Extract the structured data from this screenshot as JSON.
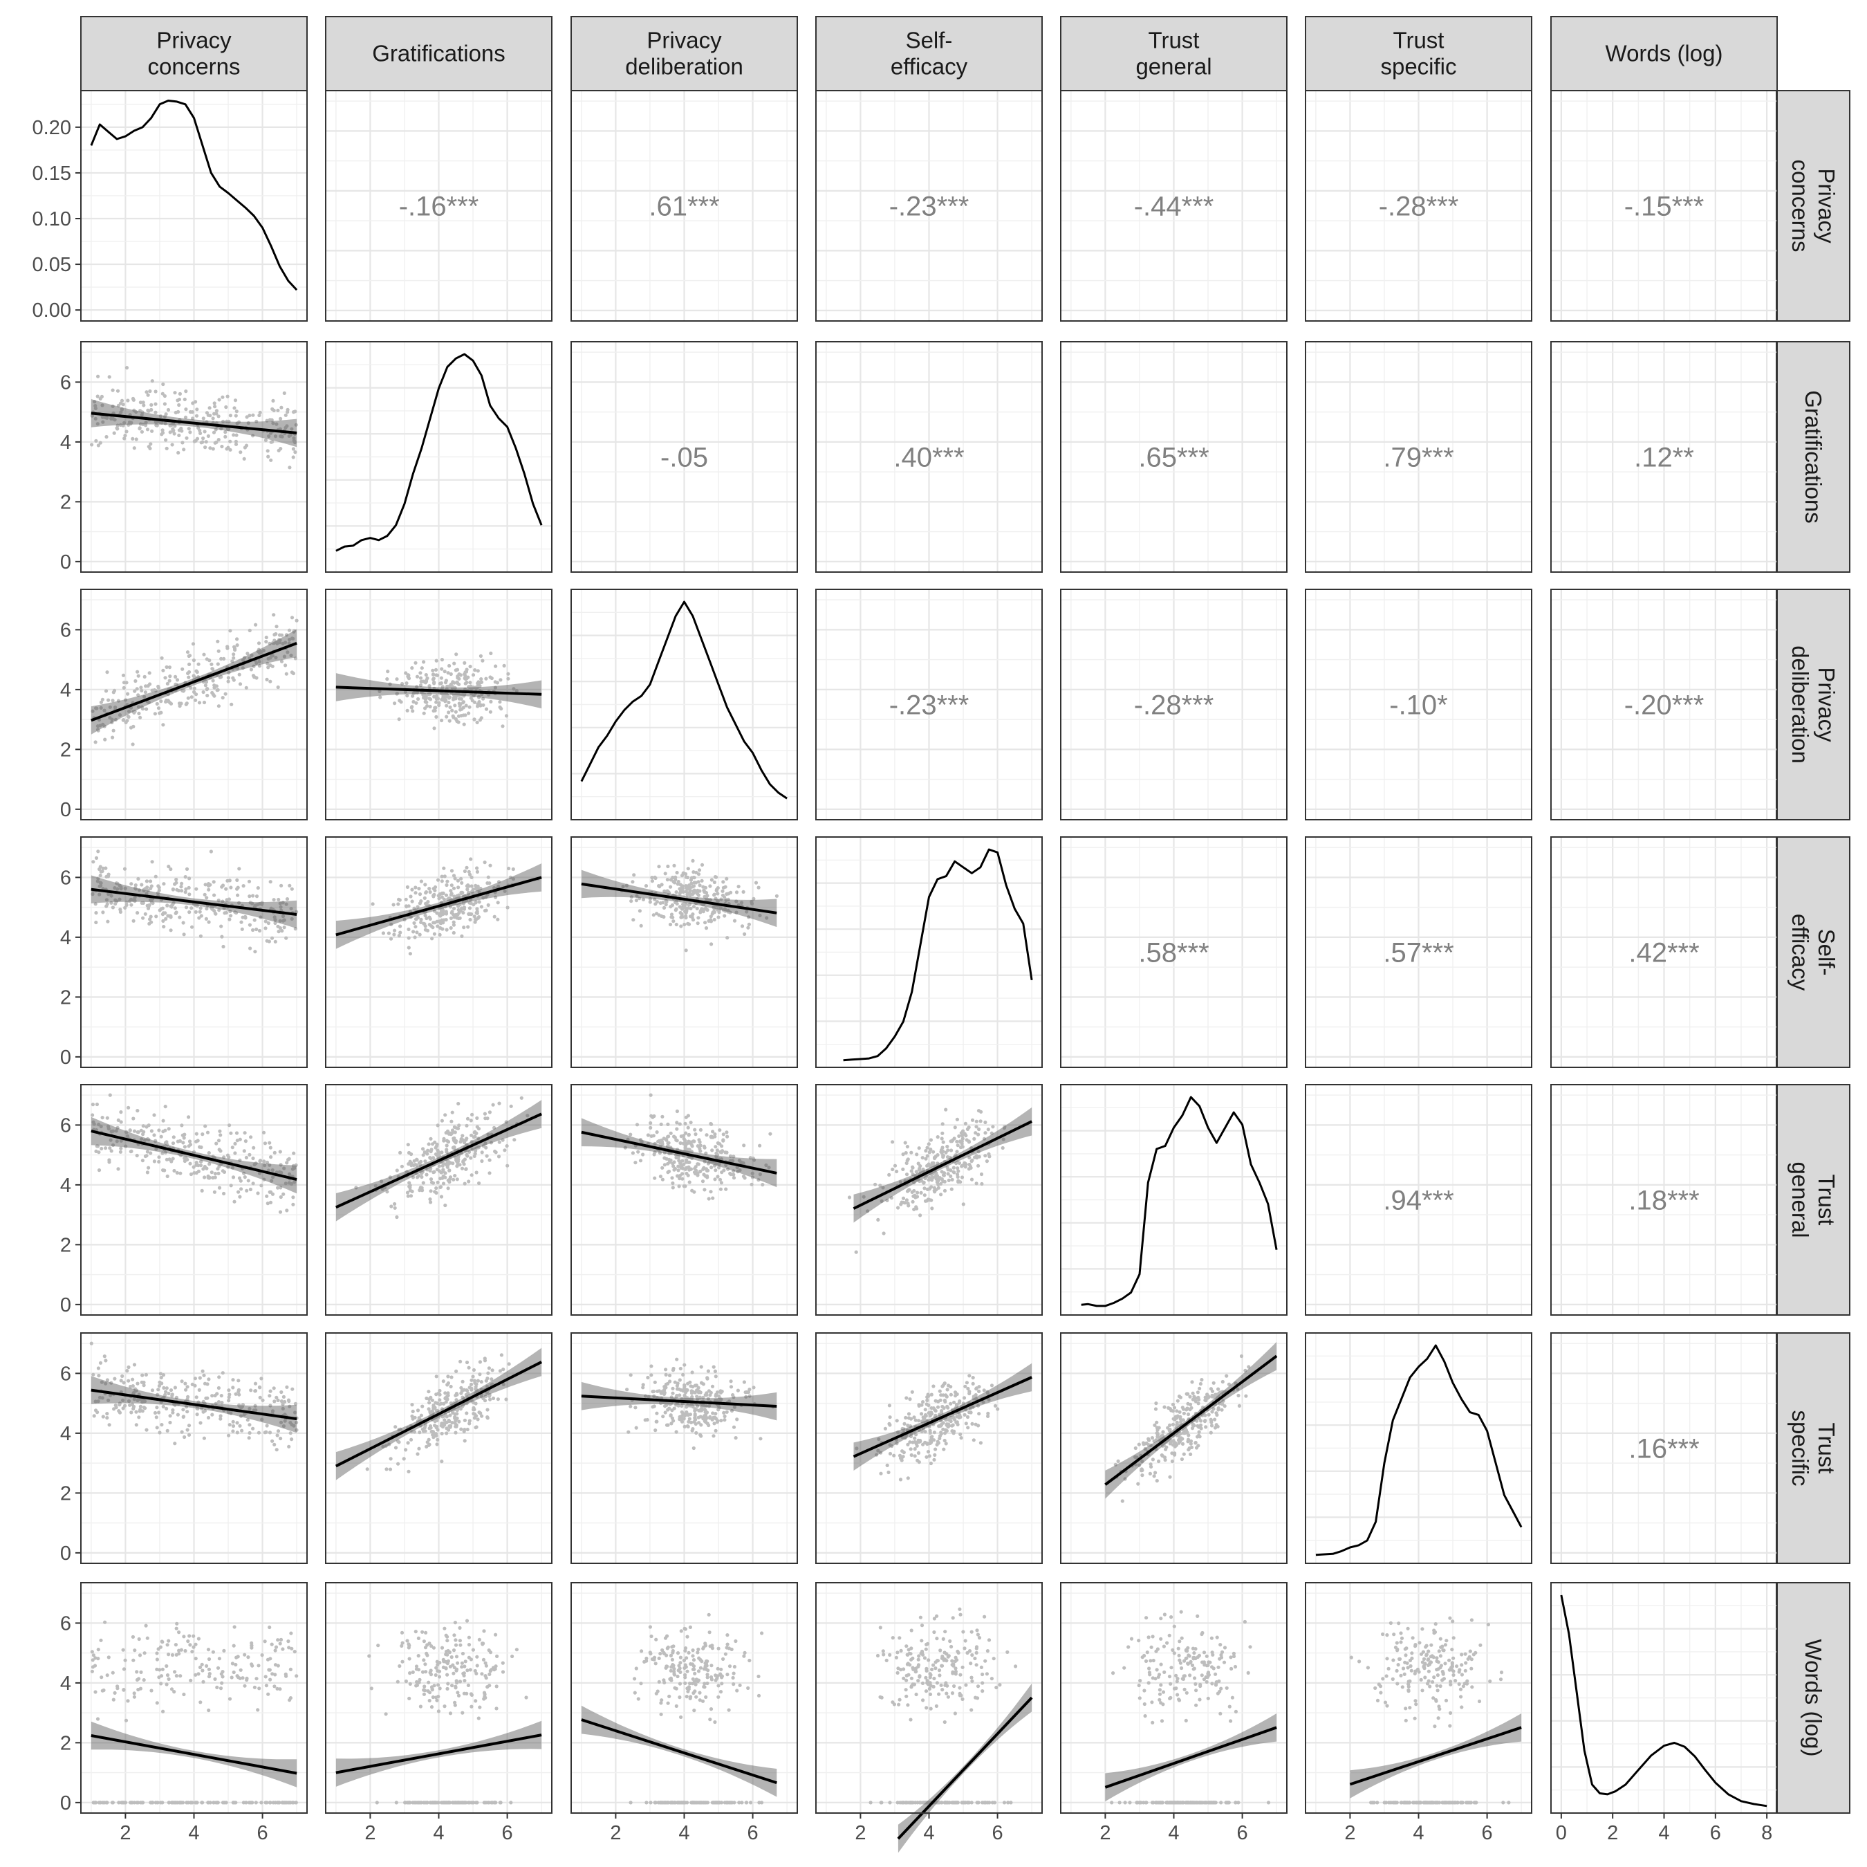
{
  "chart_data": {
    "type": "scatter-matrix",
    "variables": [
      "Privacy concerns",
      "Gratifications",
      "Privacy deliberation",
      "Self-efficacy",
      "Trust general",
      "Trust specific",
      "Words (log)"
    ],
    "column_strips": [
      [
        "Privacy",
        "concerns"
      ],
      [
        "Gratifications"
      ],
      [
        "Privacy",
        "deliberation"
      ],
      [
        "Self-",
        "efficacy"
      ],
      [
        "Trust",
        "general"
      ],
      [
        "Trust",
        "specific"
      ],
      [
        "Words (log)"
      ]
    ],
    "row_strips": [
      [
        "Privacy",
        "concerns"
      ],
      [
        "Gratifications"
      ],
      [
        "Privacy",
        "deliberation"
      ],
      [
        "Self-",
        "efficacy"
      ],
      [
        "Trust",
        "general"
      ],
      [
        "Trust",
        "specific"
      ],
      [
        "Words (log)"
      ]
    ],
    "x_ranges": [
      [
        0.7,
        7.3
      ],
      [
        0.7,
        7.3
      ],
      [
        0.7,
        7.3
      ],
      [
        0.7,
        7.3
      ],
      [
        0.7,
        7.3
      ],
      [
        0.7,
        7.3
      ],
      [
        -0.4,
        8.4
      ]
    ],
    "y_range": [
      -0.35,
      7.35
    ],
    "density_y_range": [
      -0.012,
      0.24
    ],
    "x_ticks": [
      [
        2,
        4,
        6
      ],
      [
        2,
        4,
        6
      ],
      [
        2,
        4,
        6
      ],
      [
        2,
        4,
        6
      ],
      [
        2,
        4,
        6
      ],
      [
        2,
        4,
        6
      ],
      [
        0,
        2,
        4,
        6,
        8
      ]
    ],
    "y_ticks": [
      0,
      2,
      4,
      6
    ],
    "density_y_ticks": [
      "0.00",
      "0.05",
      "0.10",
      "0.15",
      "0.20"
    ],
    "correlations": [
      {
        "row": 0,
        "col": 1,
        "label": "-.16***"
      },
      {
        "row": 0,
        "col": 2,
        "label": ".61***"
      },
      {
        "row": 0,
        "col": 3,
        "label": "-.23***"
      },
      {
        "row": 0,
        "col": 4,
        "label": "-.44***"
      },
      {
        "row": 0,
        "col": 5,
        "label": "-.28***"
      },
      {
        "row": 0,
        "col": 6,
        "label": "-.15***"
      },
      {
        "row": 1,
        "col": 2,
        "label": "-.05"
      },
      {
        "row": 1,
        "col": 3,
        "label": ".40***"
      },
      {
        "row": 1,
        "col": 4,
        "label": ".65***"
      },
      {
        "row": 1,
        "col": 5,
        "label": ".79***"
      },
      {
        "row": 1,
        "col": 6,
        "label": ".12**"
      },
      {
        "row": 2,
        "col": 3,
        "label": "-.23***"
      },
      {
        "row": 2,
        "col": 4,
        "label": "-.28***"
      },
      {
        "row": 2,
        "col": 5,
        "label": "-.10*"
      },
      {
        "row": 2,
        "col": 6,
        "label": "-.20***"
      },
      {
        "row": 3,
        "col": 4,
        "label": ".58***"
      },
      {
        "row": 3,
        "col": 5,
        "label": ".57***"
      },
      {
        "row": 3,
        "col": 6,
        "label": ".42***"
      },
      {
        "row": 4,
        "col": 5,
        "label": ".94***"
      },
      {
        "row": 4,
        "col": 6,
        "label": ".18***"
      },
      {
        "row": 5,
        "col": 6,
        "label": ".16***"
      }
    ],
    "densities": [
      [
        [
          1,
          0.18
        ],
        [
          1.25,
          0.203
        ],
        [
          1.5,
          0.195
        ],
        [
          1.75,
          0.187
        ],
        [
          2,
          0.19
        ],
        [
          2.25,
          0.196
        ],
        [
          2.5,
          0.2
        ],
        [
          2.75,
          0.21
        ],
        [
          3,
          0.225
        ],
        [
          3.25,
          0.229
        ],
        [
          3.5,
          0.228
        ],
        [
          3.75,
          0.225
        ],
        [
          4,
          0.21
        ],
        [
          4.25,
          0.18
        ],
        [
          4.5,
          0.15
        ],
        [
          4.75,
          0.135
        ],
        [
          5,
          0.128
        ],
        [
          5.25,
          0.12
        ],
        [
          5.5,
          0.112
        ],
        [
          5.75,
          0.103
        ],
        [
          6,
          0.09
        ],
        [
          6.25,
          0.07
        ],
        [
          6.5,
          0.048
        ],
        [
          6.75,
          0.032
        ],
        [
          7,
          0.022
        ]
      ],
      [
        [
          1,
          0.04
        ],
        [
          1.25,
          0.05
        ],
        [
          1.5,
          0.052
        ],
        [
          1.75,
          0.065
        ],
        [
          2,
          0.07
        ],
        [
          2.25,
          0.065
        ],
        [
          2.5,
          0.075
        ],
        [
          2.75,
          0.1
        ],
        [
          3,
          0.15
        ],
        [
          3.25,
          0.22
        ],
        [
          3.5,
          0.28
        ],
        [
          3.75,
          0.35
        ],
        [
          4,
          0.42
        ],
        [
          4.25,
          0.47
        ],
        [
          4.5,
          0.49
        ],
        [
          4.75,
          0.5
        ],
        [
          5,
          0.485
        ],
        [
          5.25,
          0.45
        ],
        [
          5.5,
          0.38
        ],
        [
          5.75,
          0.35
        ],
        [
          6,
          0.33
        ],
        [
          6.25,
          0.28
        ],
        [
          6.5,
          0.22
        ],
        [
          6.75,
          0.15
        ],
        [
          7,
          0.1
        ]
      ],
      [
        [
          1,
          0.06
        ],
        [
          1.25,
          0.09
        ],
        [
          1.5,
          0.12
        ],
        [
          1.75,
          0.14
        ],
        [
          2,
          0.165
        ],
        [
          2.25,
          0.185
        ],
        [
          2.5,
          0.2
        ],
        [
          2.75,
          0.21
        ],
        [
          3,
          0.23
        ],
        [
          3.25,
          0.27
        ],
        [
          3.5,
          0.31
        ],
        [
          3.75,
          0.35
        ],
        [
          4,
          0.375
        ],
        [
          4.25,
          0.35
        ],
        [
          4.5,
          0.31
        ],
        [
          4.75,
          0.27
        ],
        [
          5,
          0.23
        ],
        [
          5.25,
          0.19
        ],
        [
          5.5,
          0.16
        ],
        [
          5.75,
          0.13
        ],
        [
          6,
          0.11
        ],
        [
          6.25,
          0.08
        ],
        [
          6.5,
          0.055
        ],
        [
          6.75,
          0.04
        ],
        [
          7,
          0.03
        ]
      ],
      [
        [
          1.5,
          0.005
        ],
        [
          1.75,
          0.006
        ],
        [
          2,
          0.007
        ],
        [
          2.25,
          0.008
        ],
        [
          2.5,
          0.012
        ],
        [
          2.75,
          0.025
        ],
        [
          3,
          0.045
        ],
        [
          3.25,
          0.07
        ],
        [
          3.5,
          0.12
        ],
        [
          3.75,
          0.2
        ],
        [
          4,
          0.28
        ],
        [
          4.25,
          0.31
        ],
        [
          4.5,
          0.315
        ],
        [
          4.75,
          0.34
        ],
        [
          5,
          0.33
        ],
        [
          5.25,
          0.32
        ],
        [
          5.5,
          0.33
        ],
        [
          5.75,
          0.36
        ],
        [
          6,
          0.355
        ],
        [
          6.25,
          0.3
        ],
        [
          6.5,
          0.26
        ],
        [
          6.75,
          0.235
        ],
        [
          7,
          0.14
        ]
      ],
      [
        [
          1.3,
          0.01
        ],
        [
          1.5,
          0.011
        ],
        [
          1.75,
          0.008
        ],
        [
          2,
          0.008
        ],
        [
          2.25,
          0.013
        ],
        [
          2.5,
          0.02
        ],
        [
          2.75,
          0.03
        ],
        [
          3,
          0.06
        ],
        [
          3.25,
          0.21
        ],
        [
          3.5,
          0.265
        ],
        [
          3.75,
          0.27
        ],
        [
          4,
          0.3
        ],
        [
          4.25,
          0.32
        ],
        [
          4.5,
          0.35
        ],
        [
          4.75,
          0.335
        ],
        [
          5,
          0.3
        ],
        [
          5.25,
          0.275
        ],
        [
          5.5,
          0.3
        ],
        [
          5.75,
          0.325
        ],
        [
          6,
          0.305
        ],
        [
          6.25,
          0.24
        ],
        [
          6.5,
          0.21
        ],
        [
          6.75,
          0.175
        ],
        [
          7,
          0.1
        ]
      ],
      [
        [
          1,
          0.008
        ],
        [
          1.25,
          0.009
        ],
        [
          1.5,
          0.01
        ],
        [
          1.75,
          0.015
        ],
        [
          2,
          0.022
        ],
        [
          2.25,
          0.026
        ],
        [
          2.5,
          0.035
        ],
        [
          2.75,
          0.07
        ],
        [
          3,
          0.18
        ],
        [
          3.25,
          0.26
        ],
        [
          3.5,
          0.3
        ],
        [
          3.75,
          0.34
        ],
        [
          4,
          0.36
        ],
        [
          4.25,
          0.375
        ],
        [
          4.5,
          0.4
        ],
        [
          4.75,
          0.37
        ],
        [
          5,
          0.33
        ],
        [
          5.25,
          0.3
        ],
        [
          5.5,
          0.275
        ],
        [
          5.75,
          0.27
        ],
        [
          6,
          0.24
        ],
        [
          6.25,
          0.18
        ],
        [
          6.5,
          0.12
        ],
        [
          6.75,
          0.09
        ],
        [
          7,
          0.06
        ]
      ],
      [
        [
          0,
          0.22
        ],
        [
          0.3,
          0.18
        ],
        [
          0.6,
          0.12
        ],
        [
          0.9,
          0.06
        ],
        [
          1.2,
          0.025
        ],
        [
          1.5,
          0.016
        ],
        [
          1.8,
          0.015
        ],
        [
          2.1,
          0.018
        ],
        [
          2.5,
          0.025
        ],
        [
          3,
          0.04
        ],
        [
          3.5,
          0.055
        ],
        [
          4,
          0.065
        ],
        [
          4.4,
          0.068
        ],
        [
          4.8,
          0.064
        ],
        [
          5.2,
          0.054
        ],
        [
          5.6,
          0.04
        ],
        [
          6,
          0.027
        ],
        [
          6.5,
          0.015
        ],
        [
          7,
          0.008
        ],
        [
          7.5,
          0.005
        ],
        [
          8,
          0.003
        ]
      ]
    ],
    "fits": [
      {
        "row": 1,
        "col": 0,
        "slope": -0.11,
        "intercept": 5.07,
        "x_from": 1.0,
        "x_to": 7.0
      },
      {
        "row": 2,
        "col": 0,
        "slope": 0.43,
        "intercept": 2.54,
        "x_from": 1.0,
        "x_to": 7.0
      },
      {
        "row": 2,
        "col": 1,
        "slope": -0.04,
        "intercept": 4.12,
        "x_from": 1.0,
        "x_to": 7.0
      },
      {
        "row": 3,
        "col": 0,
        "slope": -0.14,
        "intercept": 5.74,
        "x_from": 1.0,
        "x_to": 7.0
      },
      {
        "row": 3,
        "col": 1,
        "slope": 0.32,
        "intercept": 3.76,
        "x_from": 1.0,
        "x_to": 7.0
      },
      {
        "row": 3,
        "col": 2,
        "slope": -0.17,
        "intercept": 5.95,
        "x_from": 1.0,
        "x_to": 6.7
      },
      {
        "row": 4,
        "col": 0,
        "slope": -0.27,
        "intercept": 6.07,
        "x_from": 1.0,
        "x_to": 7.0
      },
      {
        "row": 4,
        "col": 1,
        "slope": 0.52,
        "intercept": 2.73,
        "x_from": 1.0,
        "x_to": 7.0
      },
      {
        "row": 4,
        "col": 2,
        "slope": -0.24,
        "intercept": 6.0,
        "x_from": 1.0,
        "x_to": 6.7
      },
      {
        "row": 4,
        "col": 3,
        "slope": 0.56,
        "intercept": 2.2,
        "x_from": 1.8,
        "x_to": 7.0
      },
      {
        "row": 5,
        "col": 0,
        "slope": -0.16,
        "intercept": 5.6,
        "x_from": 1.0,
        "x_to": 7.0
      },
      {
        "row": 5,
        "col": 1,
        "slope": 0.58,
        "intercept": 2.32,
        "x_from": 1.0,
        "x_to": 7.0
      },
      {
        "row": 5,
        "col": 2,
        "slope": -0.06,
        "intercept": 5.3,
        "x_from": 1.0,
        "x_to": 6.7
      },
      {
        "row": 5,
        "col": 3,
        "slope": 0.51,
        "intercept": 2.3,
        "x_from": 1.8,
        "x_to": 7.0
      },
      {
        "row": 5,
        "col": 4,
        "slope": 0.86,
        "intercept": 0.56,
        "x_from": 2.0,
        "x_to": 7.0
      },
      {
        "row": 6,
        "col": 0,
        "slope": -0.21,
        "intercept": 2.45,
        "x_from": 1.0,
        "x_to": 7.0
      },
      {
        "row": 6,
        "col": 1,
        "slope": 0.21,
        "intercept": 0.79,
        "x_from": 1.0,
        "x_to": 7.0
      },
      {
        "row": 6,
        "col": 2,
        "slope": -0.37,
        "intercept": 3.14,
        "x_from": 1.0,
        "x_to": 6.7
      },
      {
        "row": 6,
        "col": 3,
        "slope": 1.21,
        "intercept": -4.96,
        "x_from": 3.1,
        "x_to": 7.0
      },
      {
        "row": 6,
        "col": 4,
        "slope": 0.4,
        "intercept": -0.29,
        "x_from": 2.0,
        "x_to": 7.0
      },
      {
        "row": 6,
        "col": 5,
        "slope": 0.38,
        "intercept": -0.15,
        "x_from": 2.0,
        "x_to": 7.0
      }
    ]
  }
}
